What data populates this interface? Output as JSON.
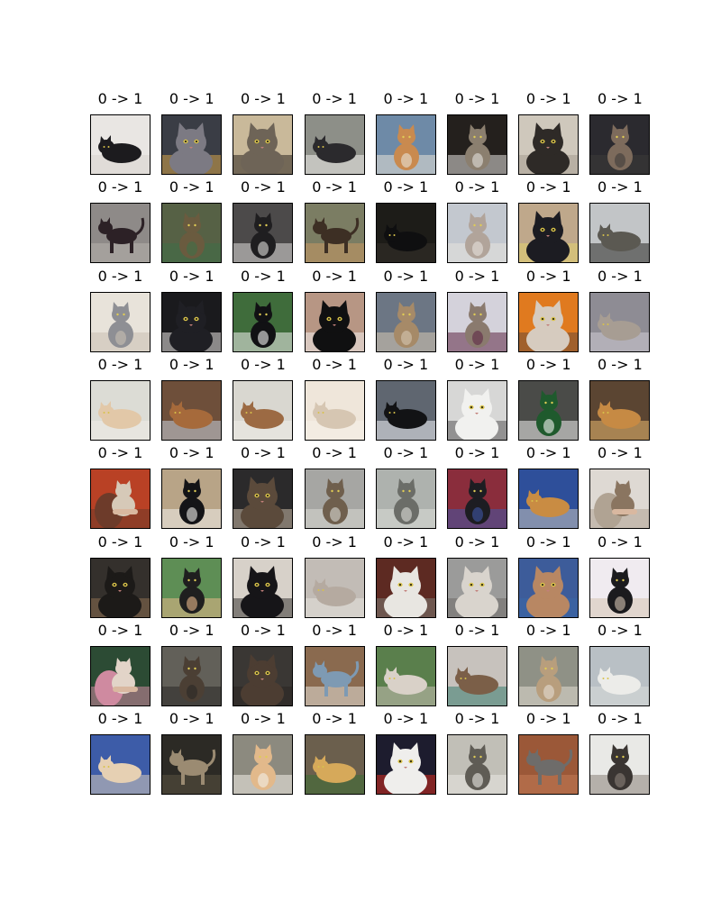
{
  "figure": {
    "rows": 8,
    "cols": 8,
    "panels": [
      {
        "label": "0 -> 1",
        "bg": "#e9e6e3",
        "fur": "#1c1b1e",
        "accent": "#d9d4cf",
        "pose": "lying"
      },
      {
        "label": "0 -> 1",
        "bg": "#3a3d45",
        "fur": "#7c7a83",
        "accent": "#d3a44a",
        "pose": "face"
      },
      {
        "label": "0 -> 1",
        "bg": "#c9b99a",
        "fur": "#6e6457",
        "accent": "#2b2620",
        "pose": "face"
      },
      {
        "label": "0 -> 1",
        "bg": "#8d8f88",
        "fur": "#2b2a2d",
        "accent": "#f0efeb",
        "pose": "lying"
      },
      {
        "label": "0 -> 1",
        "bg": "#6e8aa7",
        "fur": "#c98a4f",
        "accent": "#e8e2d7",
        "pose": "sitting"
      },
      {
        "label": "0 -> 1",
        "bg": "#24201d",
        "fur": "#8b7f6f",
        "accent": "#e2e0dc",
        "pose": "sitting"
      },
      {
        "label": "0 -> 1",
        "bg": "#cfc8bc",
        "fur": "#2e2a27",
        "accent": "#a59c8f",
        "pose": "face"
      },
      {
        "label": "0 -> 1",
        "bg": "#2b2a2f",
        "fur": "#7d6b5c",
        "accent": "#3d3a38",
        "pose": "sitting"
      },
      {
        "label": "0 -> 1",
        "bg": "#8e8a88",
        "fur": "#2c2126",
        "accent": "#b7b2ad",
        "pose": "standing"
      },
      {
        "label": "0 -> 1",
        "bg": "#566145",
        "fur": "#6a5b3f",
        "accent": "#3f6f47",
        "pose": "sitting"
      },
      {
        "label": "0 -> 1",
        "bg": "#4c4a4a",
        "fur": "#1f1e20",
        "accent": "#dcdad8",
        "pose": "sitting"
      },
      {
        "label": "0 -> 1",
        "bg": "#7b7d63",
        "fur": "#3d2f24",
        "accent": "#c99965",
        "pose": "standing"
      },
      {
        "label": "0 -> 1",
        "bg": "#1d1c18",
        "fur": "#0f0f10",
        "accent": "#35322b",
        "pose": "lying"
      },
      {
        "label": "0 -> 1",
        "bg": "#c3c8cf",
        "fur": "#b1a49a",
        "accent": "#e6e3de",
        "pose": "sitting"
      },
      {
        "label": "0 -> 1",
        "bg": "#bfa88b",
        "fur": "#1c1c22",
        "accent": "#e3d26f",
        "pose": "face"
      },
      {
        "label": "0 -> 1",
        "bg": "#c2c5c7",
        "fur": "#5b5952",
        "accent": "#2b2a27",
        "pose": "lying"
      },
      {
        "label": "0 -> 1",
        "bg": "#e8e3da",
        "fur": "#8e8f94",
        "accent": "#c8bfb2",
        "pose": "sitting"
      },
      {
        "label": "0 -> 1",
        "bg": "#1a1a1d",
        "fur": "#1f1f24",
        "accent": "#e9e6e2",
        "pose": "face"
      },
      {
        "label": "0 -> 1",
        "bg": "#3f6c3b",
        "fur": "#111114",
        "accent": "#f0f0ee",
        "pose": "sitting"
      },
      {
        "label": "0 -> 1",
        "bg": "#b79684",
        "fur": "#101011",
        "accent": "#f4f1ee",
        "pose": "face"
      },
      {
        "label": "0 -> 1",
        "bg": "#6c7684",
        "fur": "#a68a68",
        "accent": "#d6c7b2",
        "pose": "sitting"
      },
      {
        "label": "0 -> 1",
        "bg": "#d4d2db",
        "fur": "#8a7a6e",
        "accent": "#5f2846",
        "pose": "sitting"
      },
      {
        "label": "0 -> 1",
        "bg": "#e07a1f",
        "fur": "#d6cbbf",
        "accent": "#6b4a36",
        "pose": "face"
      },
      {
        "label": "0 -> 1",
        "bg": "#8e8c94",
        "fur": "#a79d93",
        "accent": "#d0ccd4",
        "pose": "lying"
      },
      {
        "label": "0 -> 1",
        "bg": "#dcdcd5",
        "fur": "#e2c8a8",
        "accent": "#f1ede7",
        "pose": "lying"
      },
      {
        "label": "0 -> 1",
        "bg": "#6e4f3a",
        "fur": "#a66a3b",
        "accent": "#c8d2dd",
        "pose": "lying"
      },
      {
        "label": "0 -> 1",
        "bg": "#d9d7d0",
        "fur": "#9c6a43",
        "accent": "#eeece7",
        "pose": "lying"
      },
      {
        "label": "0 -> 1",
        "bg": "#efe6da",
        "fur": "#d6c6b2",
        "accent": "#f6f1ea",
        "pose": "lying"
      },
      {
        "label": "0 -> 1",
        "bg": "#5f6670",
        "fur": "#121315",
        "accent": "#eef1f5",
        "pose": "lying"
      },
      {
        "label": "0 -> 1",
        "bg": "#d7d7d6",
        "fur": "#f1f1ef",
        "accent": "#5a5859",
        "pose": "face"
      },
      {
        "label": "0 -> 1",
        "bg": "#4a4b48",
        "fur": "#1f5a2d",
        "accent": "#f2f2f0",
        "pose": "sitting"
      },
      {
        "label": "0 -> 1",
        "bg": "#5b4532",
        "fur": "#c68a44",
        "accent": "#e5b76d",
        "pose": "lying"
      },
      {
        "label": "0 -> 1",
        "bg": "#b94125",
        "fur": "#d6c9b8",
        "accent": "#6d3b2a",
        "pose": "held"
      },
      {
        "label": "0 -> 1",
        "bg": "#b8a487",
        "fur": "#141417",
        "accent": "#f0eeeb",
        "pose": "sitting"
      },
      {
        "label": "0 -> 1",
        "bg": "#2b2a2b",
        "fur": "#5b4a3b",
        "accent": "#c9b8a6",
        "pose": "face"
      },
      {
        "label": "0 -> 1",
        "bg": "#a6a6a3",
        "fur": "#6f5f4d",
        "accent": "#d8d8d4",
        "pose": "sitting"
      },
      {
        "label": "0 -> 1",
        "bg": "#aeb2ae",
        "fur": "#6b6d68",
        "accent": "#dcded8",
        "pose": "sitting"
      },
      {
        "label": "0 -> 1",
        "bg": "#8a2d3c",
        "fur": "#1d1d22",
        "accent": "#3f57a7",
        "pose": "sitting"
      },
      {
        "label": "0 -> 1",
        "bg": "#2e4f9a",
        "fur": "#c98c43",
        "accent": "#c9c5be",
        "pose": "lying"
      },
      {
        "label": "0 -> 1",
        "bg": "#ded9d3",
        "fur": "#8a7560",
        "accent": "#b0a393",
        "pose": "held"
      },
      {
        "label": "0 -> 1",
        "bg": "#34302c",
        "fur": "#1c1a18",
        "accent": "#8c6f52",
        "pose": "face"
      },
      {
        "label": "0 -> 1",
        "bg": "#5e8e55",
        "fur": "#1f1f1f",
        "accent": "#e7b88b",
        "pose": "sitting"
      },
      {
        "label": "0 -> 1",
        "bg": "#d7d1c9",
        "fur": "#161518",
        "accent": "#3d3a36",
        "pose": "face"
      },
      {
        "label": "0 -> 1",
        "bg": "#c2bcb6",
        "fur": "#b5aaa0",
        "accent": "#e5e1dc",
        "pose": "lying"
      },
      {
        "label": "0 -> 1",
        "bg": "#5d2a22",
        "fur": "#e8e6e1",
        "accent": "#7c7b74",
        "pose": "face"
      },
      {
        "label": "0 -> 1",
        "bg": "#9b9b9a",
        "fur": "#d9d4cd",
        "accent": "#6d6a67",
        "pose": "face"
      },
      {
        "label": "0 -> 1",
        "bg": "#3d5c9a",
        "fur": "#b88763",
        "accent": "#3a67a8",
        "pose": "face"
      },
      {
        "label": "0 -> 1",
        "bg": "#f0ebf0",
        "fur": "#1b1b1e",
        "accent": "#d5c5b2",
        "pose": "sitting"
      },
      {
        "label": "0 -> 1",
        "bg": "#2c4b34",
        "fur": "#e2d4c8",
        "accent": "#cf8aa0",
        "pose": "held"
      },
      {
        "label": "0 -> 1",
        "bg": "#626059",
        "fur": "#4b3f34",
        "accent": "#2a2826",
        "pose": "sitting"
      },
      {
        "label": "0 -> 1",
        "bg": "#3a3734",
        "fur": "#4c3d32",
        "accent": "#2a2622",
        "pose": "face"
      },
      {
        "label": "0 -> 1",
        "bg": "#8a6a4f",
        "fur": "#7e9ab3",
        "accent": "#e5e0d9",
        "pose": "standing"
      },
      {
        "label": "0 -> 1",
        "bg": "#5a7f4c",
        "fur": "#d9d1c8",
        "accent": "#c8c0b5",
        "pose": "lying"
      },
      {
        "label": "0 -> 1",
        "bg": "#c7c2bd",
        "fur": "#7b5f48",
        "accent": "#3a7d6f",
        "pose": "lying"
      },
      {
        "label": "0 -> 1",
        "bg": "#8f9186",
        "fur": "#b89e7d",
        "accent": "#e2dcd2",
        "pose": "sitting"
      },
      {
        "label": "0 -> 1",
        "bg": "#b9c0c5",
        "fur": "#ecece9",
        "accent": "#d9dbd9",
        "pose": "lying"
      },
      {
        "label": "0 -> 1",
        "bg": "#3d5ca8",
        "fur": "#e6d0b3",
        "accent": "#d6cbb9",
        "pose": "lying"
      },
      {
        "label": "0 -> 1",
        "bg": "#2c2a25",
        "fur": "#9b8b72",
        "accent": "#5b5242",
        "pose": "standing"
      },
      {
        "label": "0 -> 1",
        "bg": "#8c8a7f",
        "fur": "#e2b98b",
        "accent": "#f2efe8",
        "pose": "sitting"
      },
      {
        "label": "0 -> 1",
        "bg": "#6b5f4d",
        "fur": "#d6a95a",
        "accent": "#3d6d35",
        "pose": "lying"
      },
      {
        "label": "0 -> 1",
        "bg": "#1d1c2e",
        "fur": "#efeeec",
        "accent": "#d42b1f",
        "pose": "face"
      },
      {
        "label": "0 -> 1",
        "bg": "#c1bfb7",
        "fur": "#5f5c55",
        "accent": "#e9e8e3",
        "pose": "sitting"
      },
      {
        "label": "0 -> 1",
        "bg": "#9b5838",
        "fur": "#6e6c6a",
        "accent": "#c27b55",
        "pose": "standing"
      },
      {
        "label": "0 -> 1",
        "bg": "#e9e9e6",
        "fur": "#3a3532",
        "accent": "#8a8178",
        "pose": "sitting"
      }
    ]
  }
}
